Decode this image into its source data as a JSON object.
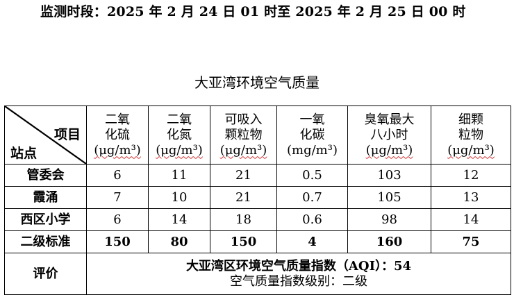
{
  "period": "监测时段：2025 年 2 月 24 日 01 时至 2025 年 2 月 25 日 00 时",
  "title": "大亚湾环境空气质量",
  "corner": {
    "item": "项目",
    "station": "站点"
  },
  "columns": [
    {
      "name": [
        "二氧",
        "化硫"
      ],
      "unit": "(μg/m³)"
    },
    {
      "name": [
        "二氧",
        "化氮"
      ],
      "unit": "(μg/m³)"
    },
    {
      "name": [
        "可吸入",
        "颗粒物"
      ],
      "unit": "(μg/m³)"
    },
    {
      "name": [
        "一氧",
        "化碳"
      ],
      "unit": "(mg/m³)"
    },
    {
      "name": [
        "臭氧最大",
        "八小时"
      ],
      "unit": "(μg/m³)"
    },
    {
      "name": [
        "细颗",
        "粒物"
      ],
      "unit": "(μg/m³)"
    }
  ],
  "rows": [
    {
      "site": "管委会",
      "values": [
        "6",
        "11",
        "21",
        "0.5",
        "103",
        "12"
      ]
    },
    {
      "site": "霞涌",
      "values": [
        "7",
        "10",
        "21",
        "0.7",
        "105",
        "13"
      ]
    },
    {
      "site": "西区小学",
      "values": [
        "6",
        "14",
        "18",
        "0.6",
        "98",
        "14"
      ]
    }
  ],
  "standard": {
    "site": "二级标准",
    "values": [
      "150",
      "80",
      "150",
      "4",
      "160",
      "75"
    ]
  },
  "evaluation": {
    "label": "评价",
    "line1": "大亚湾区环境空气质量指数（AQI）：54",
    "line2": "空气质量指数级别：二级"
  }
}
